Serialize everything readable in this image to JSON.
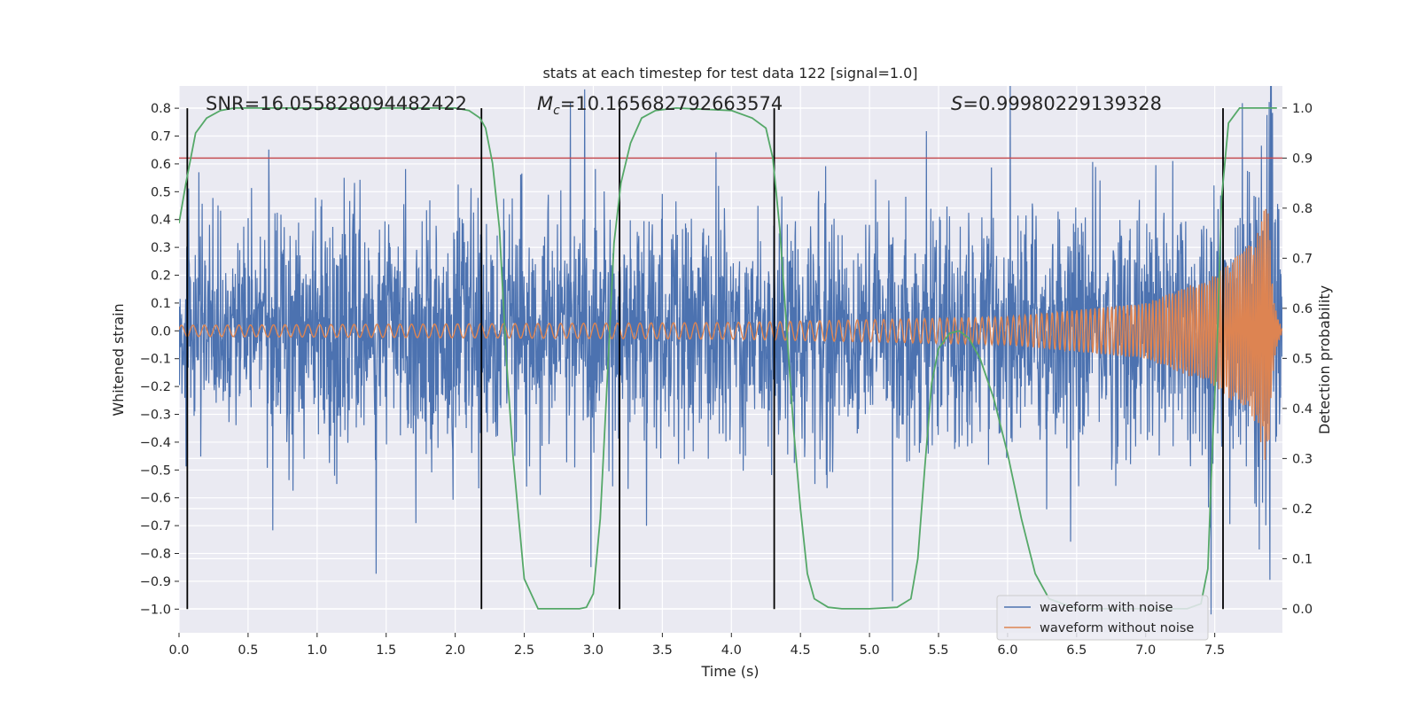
{
  "chart_data": {
    "type": "line",
    "title": "stats at each timestep for test data 122 [signal=1.0]",
    "xlabel": "Time (s)",
    "ylabel": "Whitened strain",
    "y2label": "Detection probability",
    "xlim": [
      0,
      7.99
    ],
    "ylim": [
      -1.085,
      0.88
    ],
    "y2lim": [
      -0.048,
      1.044
    ],
    "xticks": [
      "0.0",
      "0.5",
      "1.0",
      "1.5",
      "2.0",
      "2.5",
      "3.0",
      "3.5",
      "4.0",
      "4.5",
      "5.0",
      "5.5",
      "6.0",
      "6.5",
      "7.0",
      "7.5"
    ],
    "yticks": [
      "0.8",
      "0.7",
      "0.6",
      "0.5",
      "0.4",
      "0.3",
      "0.2",
      "0.1",
      "0.0",
      "−0.1",
      "−0.2",
      "−0.3",
      "−0.4",
      "−0.5",
      "−0.6",
      "−0.7",
      "−0.8",
      "−0.9",
      "−1.0"
    ],
    "y2ticks": [
      "1.0",
      "0.9",
      "0.8",
      "0.7",
      "0.6",
      "0.5",
      "0.4",
      "0.3",
      "0.2",
      "0.1",
      "0.0"
    ],
    "grid": true,
    "legend_position": "lower-right",
    "annotations": {
      "snr": "SNR=16.055828094482422",
      "mc_symbol": "M",
      "mc_sub": "c",
      "mc_value": "=10.165682792663574",
      "s_symbol": "S",
      "s_value": "=0.99980229139328"
    },
    "colors": {
      "noise": "#4c72b0",
      "clean": "#dd8452",
      "prob": "#55a868",
      "threshold": "#c44e52",
      "vline": "#000000",
      "background": "#eaeaf2",
      "grid": "#ffffff"
    },
    "series": [
      {
        "name": "waveform with noise",
        "axis": "left",
        "envelope": {
          "t": [
            0.0,
            2.0,
            4.0,
            5.5,
            6.5,
            7.0,
            7.5,
            7.8,
            7.9,
            7.99
          ],
          "amplitude": [
            0.27,
            0.27,
            0.27,
            0.27,
            0.28,
            0.3,
            0.36,
            0.42,
            0.45,
            0.3
          ]
        }
      },
      {
        "name": "waveform without noise",
        "axis": "left",
        "envelope": {
          "t": [
            0.0,
            2.0,
            4.0,
            5.0,
            6.0,
            7.0,
            7.5,
            7.8,
            7.88,
            7.93,
            7.99
          ],
          "amplitude": [
            0.02,
            0.025,
            0.03,
            0.04,
            0.05,
            0.1,
            0.2,
            0.33,
            0.5,
            0.1,
            0.0
          ]
        }
      },
      {
        "name": "detection probability",
        "axis": "right",
        "t": [
          0.0,
          0.05,
          0.12,
          0.2,
          0.3,
          0.4,
          0.5,
          0.6,
          1.0,
          1.5,
          2.0,
          2.1,
          2.18,
          2.22,
          2.27,
          2.32,
          2.37,
          2.42,
          2.5,
          2.6,
          2.8,
          2.9,
          2.95,
          3.0,
          3.05,
          3.1,
          3.15,
          3.2,
          3.27,
          3.35,
          3.45,
          3.6,
          4.0,
          4.15,
          4.25,
          4.3,
          4.35,
          4.4,
          4.45,
          4.5,
          4.55,
          4.6,
          4.7,
          4.8,
          5.0,
          5.2,
          5.3,
          5.35,
          5.4,
          5.45,
          5.5,
          5.58,
          5.65,
          5.72,
          5.8,
          5.9,
          6.0,
          6.1,
          6.2,
          6.3,
          6.5,
          7.0,
          7.3,
          7.4,
          7.45,
          7.48,
          7.52,
          7.55,
          7.6,
          7.68,
          7.75,
          7.85,
          7.95
        ],
        "values": [
          0.77,
          0.85,
          0.95,
          0.98,
          0.995,
          1.0,
          1.0,
          1.0,
          1.0,
          1.0,
          1.0,
          0.995,
          0.98,
          0.96,
          0.89,
          0.76,
          0.5,
          0.3,
          0.06,
          0.0,
          0.0,
          0.0,
          0.003,
          0.03,
          0.18,
          0.45,
          0.73,
          0.85,
          0.93,
          0.98,
          0.995,
          1.0,
          0.995,
          0.98,
          0.96,
          0.9,
          0.76,
          0.56,
          0.36,
          0.2,
          0.07,
          0.02,
          0.003,
          0.0,
          0.0,
          0.003,
          0.02,
          0.1,
          0.28,
          0.45,
          0.52,
          0.55,
          0.555,
          0.54,
          0.5,
          0.42,
          0.31,
          0.18,
          0.07,
          0.02,
          0.0,
          0.0,
          0.0,
          0.01,
          0.08,
          0.3,
          0.55,
          0.82,
          0.97,
          1.0,
          1.0,
          1.0,
          1.0
        ]
      }
    ],
    "threshold": {
      "axis": "right",
      "value": 0.9
    },
    "vlines": [
      0.06,
      2.19,
      3.19,
      4.31,
      7.56
    ],
    "vline_range": [
      -1.0,
      0.8
    ]
  },
  "legend": {
    "noise_label": "waveform with noise",
    "clean_label": "waveform without noise"
  }
}
